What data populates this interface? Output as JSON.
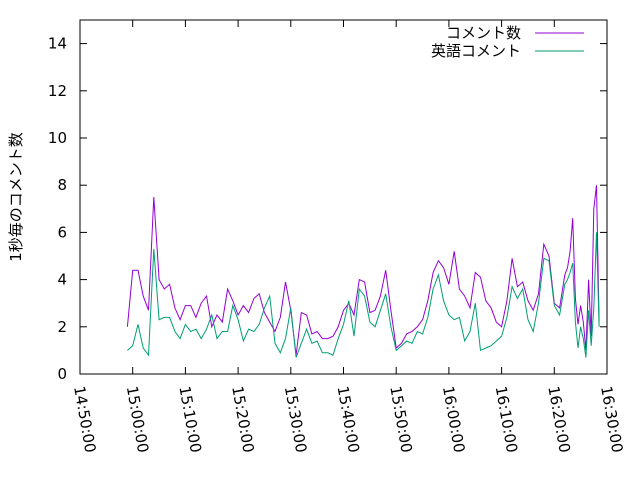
{
  "chart_data": {
    "type": "line",
    "title": "",
    "xlabel": "",
    "ylabel": "1秒毎のコメント数",
    "x_range": [
      "14:50:00",
      "16:30:00"
    ],
    "x_ticks": [
      "14:50:00",
      "15:00:00",
      "15:10:00",
      "15:20:00",
      "15:30:00",
      "15:40:00",
      "15:50:00",
      "16:00:00",
      "16:10:00",
      "16:20:00",
      "16:30:00"
    ],
    "ylim": [
      0,
      15
    ],
    "y_ticks": [
      0,
      2,
      4,
      6,
      8,
      10,
      12,
      14
    ],
    "grid": false,
    "legend_position": "top-right",
    "x": [
      "14:59:00",
      "15:00:00",
      "15:01:00",
      "15:02:00",
      "15:03:00",
      "15:04:00",
      "15:05:00",
      "15:06:00",
      "15:07:00",
      "15:08:00",
      "15:09:00",
      "15:10:00",
      "15:11:00",
      "15:12:00",
      "15:13:00",
      "15:14:00",
      "15:15:00",
      "15:16:00",
      "15:17:00",
      "15:18:00",
      "15:19:00",
      "15:20:00",
      "15:21:00",
      "15:22:00",
      "15:23:00",
      "15:24:00",
      "15:25:00",
      "15:26:00",
      "15:27:00",
      "15:28:00",
      "15:29:00",
      "15:30:00",
      "15:31:00",
      "15:32:00",
      "15:33:00",
      "15:34:00",
      "15:35:00",
      "15:36:00",
      "15:37:00",
      "15:38:00",
      "15:39:00",
      "15:40:00",
      "15:41:00",
      "15:42:00",
      "15:43:00",
      "15:44:00",
      "15:45:00",
      "15:46:00",
      "15:47:00",
      "15:48:00",
      "15:49:00",
      "15:50:00",
      "15:51:00",
      "15:52:00",
      "15:53:00",
      "15:54:00",
      "15:55:00",
      "15:56:00",
      "15:57:00",
      "15:58:00",
      "15:59:00",
      "16:00:00",
      "16:01:00",
      "16:02:00",
      "16:03:00",
      "16:04:00",
      "16:05:00",
      "16:06:00",
      "16:07:00",
      "16:08:00",
      "16:09:00",
      "16:10:00",
      "16:11:00",
      "16:12:00",
      "16:13:00",
      "16:14:00",
      "16:15:00",
      "16:16:00",
      "16:17:00",
      "16:18:00",
      "16:19:00",
      "16:20:00",
      "16:21:00",
      "16:22:00"
    ],
    "series": [
      {
        "name": "コメント数",
        "color": "#9400d3",
        "values": [
          2.0,
          4.4,
          4.4,
          3.3,
          2.7,
          7.5,
          4.0,
          3.6,
          3.8,
          2.8,
          2.3,
          2.9,
          2.9,
          2.4,
          3.0,
          3.3,
          2.0,
          2.5,
          2.2,
          3.6,
          3.1,
          2.5,
          2.9,
          2.6,
          3.2,
          3.4,
          2.6,
          2.2,
          1.8,
          2.4,
          3.9,
          2.7,
          0.8,
          2.6,
          2.5,
          1.7,
          1.8,
          1.5,
          1.5,
          1.6,
          2.0,
          2.7,
          3.0,
          2.5,
          4.0,
          3.9,
          2.6,
          2.7,
          3.3,
          4.4,
          2.7,
          1.1,
          1.3,
          1.7,
          1.8,
          2.0,
          2.3,
          3.1,
          4.3,
          4.8,
          4.5,
          3.8,
          5.2,
          3.6,
          3.3,
          2.8,
          4.3,
          4.1,
          3.1,
          2.8,
          2.2,
          2.0,
          3.1,
          4.9,
          3.7,
          3.9,
          3.1,
          2.7,
          3.4,
          5.5,
          5.0,
          3.0,
          2.8,
          4.2
        ],
        "values_tail": [
          4.5,
          5.2,
          6.6,
          3.2,
          2.1,
          2.9,
          2.2,
          1.0,
          4.0,
          1.6,
          7.0,
          8.0,
          2.2
        ]
      },
      {
        "name": "英語コメント",
        "color": "#009e73",
        "values": [
          1.0,
          1.2,
          2.1,
          1.1,
          0.8,
          5.3,
          2.3,
          2.4,
          2.4,
          1.8,
          1.5,
          2.1,
          1.8,
          1.9,
          1.5,
          1.9,
          2.5,
          1.5,
          1.8,
          1.8,
          2.9,
          2.3,
          1.4,
          1.9,
          1.8,
          2.1,
          2.8,
          3.3,
          1.3,
          0.9,
          1.5,
          2.8,
          0.7,
          1.3,
          1.9,
          1.3,
          1.4,
          0.9,
          0.9,
          0.8,
          1.5,
          2.1,
          3.1,
          1.6,
          3.6,
          3.3,
          2.2,
          2.0,
          2.7,
          3.4,
          2.0,
          1.0,
          1.2,
          1.4,
          1.3,
          1.8,
          1.7,
          2.4,
          3.6,
          4.2,
          3.1,
          2.5,
          2.3,
          2.4,
          1.4,
          1.8,
          3.0,
          1.0,
          1.1,
          1.2,
          1.4,
          1.6,
          2.4,
          3.7,
          3.2,
          3.6,
          2.3,
          1.8,
          3.0,
          4.9,
          4.8,
          2.9,
          2.5,
          3.8
        ],
        "values_tail": [
          4.0,
          4.3,
          4.7,
          2.2,
          1.1,
          2.0,
          1.5,
          0.7,
          2.7,
          1.2,
          2.8,
          6.0,
          2.0
        ]
      }
    ]
  }
}
